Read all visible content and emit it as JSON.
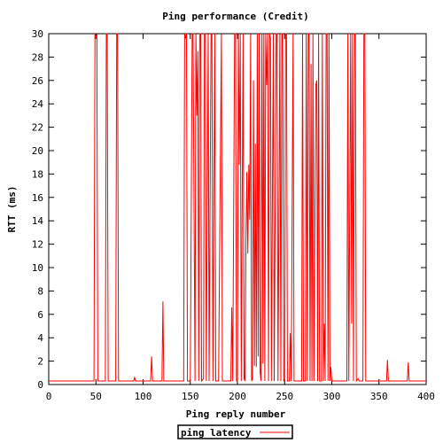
{
  "chart_data": {
    "type": "line",
    "title": "Ping performance (Credit)",
    "xlabel": "Ping reply number",
    "ylabel": "RTT (ms)",
    "xlim": [
      0,
      400
    ],
    "ylim": [
      0,
      30
    ],
    "x_ticks": [
      0,
      50,
      100,
      150,
      200,
      250,
      300,
      350,
      400
    ],
    "y_ticks": [
      0,
      2,
      4,
      6,
      8,
      10,
      12,
      14,
      16,
      18,
      20,
      22,
      24,
      26,
      28,
      30
    ],
    "grid": false,
    "legend_position": "bottom-center",
    "series": [
      {
        "name": "ping latency",
        "color": "#ff0000",
        "points": [
          [
            0,
            0.3
          ],
          [
            48,
            0.3
          ],
          [
            49,
            30
          ],
          [
            50,
            29.6
          ],
          [
            51,
            30
          ],
          [
            52,
            0.3
          ],
          [
            60,
            0.3
          ],
          [
            61,
            30
          ],
          [
            62,
            30
          ],
          [
            63,
            0.3
          ],
          [
            71,
            0.3
          ],
          [
            72,
            30
          ],
          [
            73,
            30
          ],
          [
            74,
            0.3
          ],
          [
            90,
            0.3
          ],
          [
            91,
            0.6
          ],
          [
            92,
            0.3
          ],
          [
            108,
            0.3
          ],
          [
            109,
            2.4
          ],
          [
            110,
            0.3
          ],
          [
            120,
            0.3
          ],
          [
            121,
            7.1
          ],
          [
            122,
            0.3
          ],
          [
            143,
            0.3
          ],
          [
            144,
            30
          ],
          [
            145,
            29.6
          ],
          [
            146,
            30
          ],
          [
            147,
            0.3
          ],
          [
            150,
            0.3
          ],
          [
            152,
            30
          ],
          [
            153,
            30
          ],
          [
            155,
            0.3
          ],
          [
            156,
            30
          ],
          [
            157,
            23
          ],
          [
            158,
            28.5
          ],
          [
            159,
            0.3
          ],
          [
            160,
            30
          ],
          [
            161,
            30
          ],
          [
            162,
            0.3
          ],
          [
            164,
            0.5
          ],
          [
            165,
            30
          ],
          [
            166,
            30
          ],
          [
            167,
            0.3
          ],
          [
            169,
            30
          ],
          [
            170,
            0.3
          ],
          [
            172,
            30
          ],
          [
            173,
            30
          ],
          [
            174,
            0.3
          ],
          [
            176,
            30
          ],
          [
            177,
            0.3
          ],
          [
            180,
            0.3
          ],
          [
            183,
            30
          ],
          [
            184,
            0.3
          ],
          [
            193,
            0.3
          ],
          [
            194,
            6.6
          ],
          [
            195,
            0.3
          ],
          [
            197,
            30
          ],
          [
            198,
            30
          ],
          [
            199,
            0.3
          ],
          [
            200,
            0.3
          ],
          [
            201,
            30
          ],
          [
            202,
            18.8
          ],
          [
            203,
            30
          ],
          [
            204,
            0.3
          ],
          [
            206,
            30
          ],
          [
            207,
            0.5
          ],
          [
            208,
            0.3
          ],
          [
            209,
            12.3
          ],
          [
            210,
            18.2
          ],
          [
            211,
            11.2
          ],
          [
            212,
            18.8
          ],
          [
            213,
            14.1
          ],
          [
            214,
            30
          ],
          [
            215,
            0.3
          ],
          [
            216,
            0.5
          ],
          [
            217,
            26
          ],
          [
            218,
            1.6
          ],
          [
            219,
            20.6
          ],
          [
            220,
            1.5
          ],
          [
            221,
            30
          ],
          [
            222,
            2.4
          ],
          [
            223,
            30
          ],
          [
            224,
            1
          ],
          [
            225,
            0.3
          ],
          [
            226,
            30
          ],
          [
            227,
            1.8
          ],
          [
            228,
            30
          ],
          [
            229,
            0.3
          ],
          [
            230,
            30
          ],
          [
            231,
            25.6
          ],
          [
            232,
            30
          ],
          [
            233,
            0.3
          ],
          [
            234,
            30
          ],
          [
            235,
            29.6
          ],
          [
            236,
            0.3
          ],
          [
            238,
            30
          ],
          [
            239,
            0.3
          ],
          [
            241,
            30
          ],
          [
            242,
            30
          ],
          [
            243,
            0.3
          ],
          [
            245,
            30
          ],
          [
            246,
            0.3
          ],
          [
            247,
            30
          ],
          [
            248,
            30
          ],
          [
            249,
            0.3
          ],
          [
            250,
            0.3
          ],
          [
            251,
            30
          ],
          [
            252,
            30
          ],
          [
            253,
            0.3
          ],
          [
            255,
            0.3
          ],
          [
            256,
            4.4
          ],
          [
            257,
            0.3
          ],
          [
            259,
            30
          ],
          [
            260,
            0.3
          ],
          [
            268,
            0.3
          ],
          [
            269,
            30
          ],
          [
            270,
            0.3
          ],
          [
            272,
            0.3
          ],
          [
            273,
            30
          ],
          [
            274,
            0.3
          ],
          [
            275,
            30
          ],
          [
            276,
            30
          ],
          [
            277,
            0.3
          ],
          [
            278,
            27.4
          ],
          [
            279,
            0.3
          ],
          [
            280,
            30
          ],
          [
            281,
            0.3
          ],
          [
            283,
            25.6
          ],
          [
            284,
            26
          ],
          [
            285,
            0.3
          ],
          [
            286,
            30
          ],
          [
            287,
            0.3
          ],
          [
            289,
            0.3
          ],
          [
            290,
            30
          ],
          [
            291,
            0.3
          ],
          [
            292,
            5.2
          ],
          [
            293,
            0.3
          ],
          [
            294,
            30
          ],
          [
            295,
            30
          ],
          [
            296,
            0.3
          ],
          [
            297,
            30
          ],
          [
            298,
            0.3
          ],
          [
            299,
            1.5
          ],
          [
            300,
            0.3
          ],
          [
            316,
            0.3
          ],
          [
            317,
            30
          ],
          [
            318,
            0.3
          ],
          [
            320,
            30
          ],
          [
            321,
            5.2
          ],
          [
            322,
            30
          ],
          [
            323,
            0.3
          ],
          [
            324,
            30
          ],
          [
            325,
            30
          ],
          [
            326,
            0.3
          ],
          [
            328,
            0.5
          ],
          [
            329,
            0.3
          ],
          [
            333,
            0.3
          ],
          [
            334,
            30
          ],
          [
            335,
            30
          ],
          [
            336,
            0.3
          ],
          [
            358,
            0.3
          ],
          [
            359,
            2.1
          ],
          [
            360,
            0.3
          ],
          [
            380,
            0.3
          ],
          [
            381,
            1.9
          ],
          [
            382,
            0.3
          ],
          [
            400,
            0.3
          ]
        ]
      }
    ]
  }
}
